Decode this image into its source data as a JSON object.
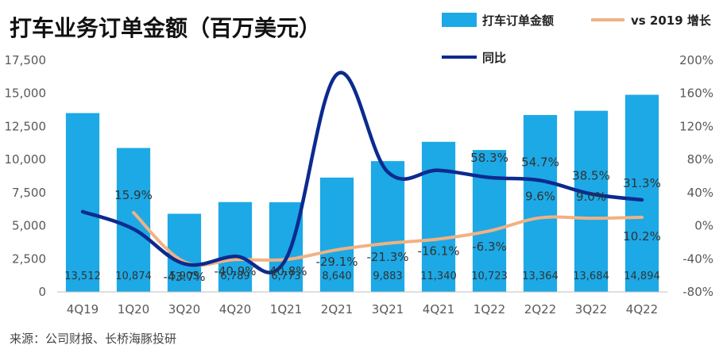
{
  "chart_data": {
    "type": "bar",
    "title": "打车业务订单金额（百万美元）",
    "categories": [
      "4Q19",
      "1Q20",
      "3Q20",
      "4Q20",
      "1Q21",
      "2Q21",
      "3Q21",
      "4Q21",
      "1Q22",
      "2Q22",
      "3Q22",
      "4Q22"
    ],
    "bar_series": {
      "name": "打车订单金额",
      "values": [
        13512,
        10874,
        5905,
        6789,
        6773,
        8640,
        9883,
        11340,
        10723,
        13364,
        13684,
        14894
      ],
      "color": "#1ca9e6"
    },
    "line_series": [
      {
        "name": "vs 2019 增长",
        "axis": "right",
        "color": "#f2b183",
        "values": [
          null,
          15.9,
          -43.7,
          -40.9,
          -40.8,
          -29.1,
          -21.3,
          -16.1,
          -6.3,
          9.6,
          9.0,
          10.2
        ],
        "labels": [
          "",
          "15.9%",
          "-43.7%",
          "-40.9%",
          "-40.8%",
          "-29.1%",
          "-21.3%",
          "-16.1%",
          "-6.3%",
          "9.6%",
          "9.0%",
          "10.2%"
        ]
      },
      {
        "name": "同比",
        "axis": "right",
        "color": "#0c2a8f",
        "values": [
          17,
          -4,
          -46,
          -37,
          -40,
          183,
          65,
          67,
          58.3,
          54.7,
          38.5,
          31.3
        ],
        "labels": [
          "",
          "",
          "",
          "",
          "",
          "",
          "",
          "",
          "58.3%",
          "54.7%",
          "38.5%",
          "31.3%"
        ]
      }
    ],
    "y_left": {
      "min": 0,
      "max": 17500,
      "ticks": [
        "0",
        "2,500",
        "5,000",
        "7,500",
        "10,000",
        "12,500",
        "15,000",
        "17,500"
      ]
    },
    "y_right": {
      "min": -80,
      "max": 200,
      "ticks": [
        "-80%",
        "-40%",
        "0%",
        "40%",
        "80%",
        "120%",
        "160%",
        "200%"
      ]
    },
    "grid": false,
    "legend_position": "top-right"
  },
  "source": "来源：公司财报、长桥海豚投研"
}
